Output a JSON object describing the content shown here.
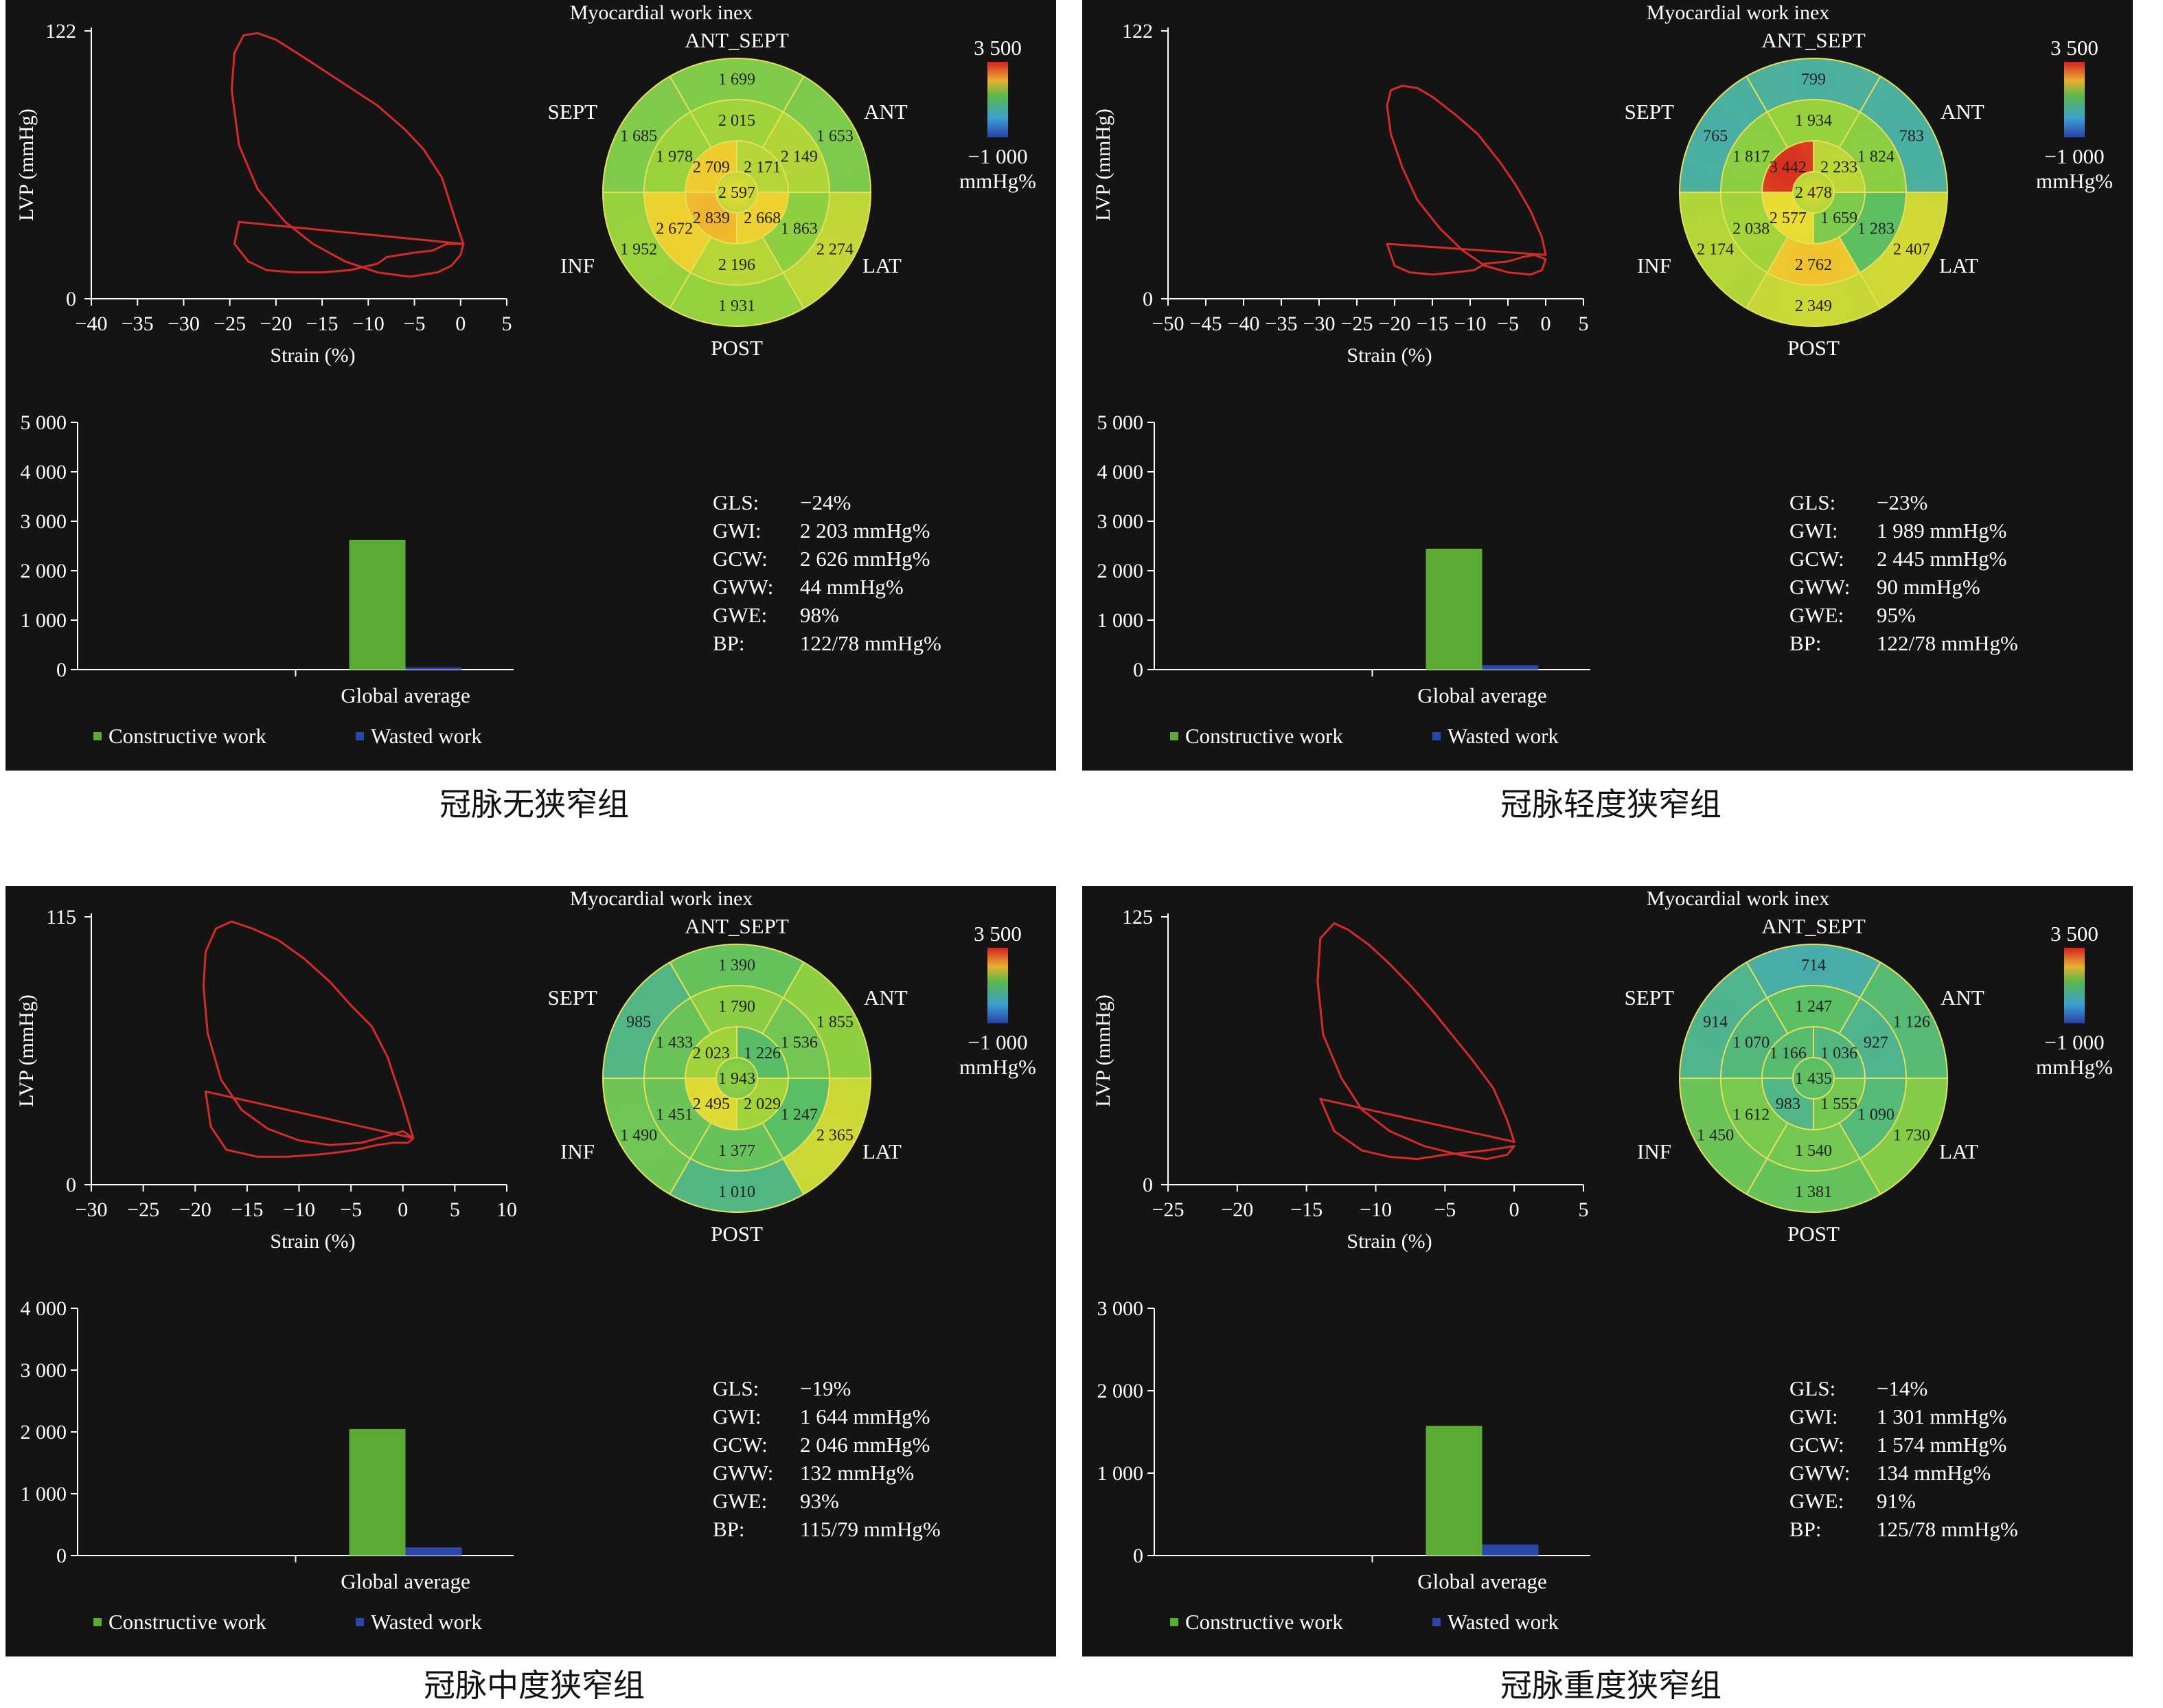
{
  "labels": {
    "bullseye_title": "Myocardial work inex",
    "segments": {
      "top": "ANT_SEPT",
      "tl": "SEPT",
      "tr": "ANT",
      "bl": "INF",
      "br": "LAT",
      "bottom": "POST"
    },
    "colorbar_max": "3 500",
    "colorbar_min": "−1 000",
    "colorbar_unit": "mmHg%",
    "legend_constructive": "Constructive work",
    "legend_wasted": "Wasted work",
    "bar_category": "Global average",
    "stat_keys": [
      "GLS:",
      "GWI:",
      "GCW:",
      "GWW:",
      "GWE:",
      "BP:"
    ]
  },
  "colors": {
    "panel_bg": "#141414",
    "loop": "#d42a2a",
    "constructive": "#5aaa34",
    "wasted": "#2a46a8",
    "axis": "#ffffff",
    "ring": "#e6e05a"
  },
  "panels": [
    {
      "caption": "冠脉无狭窄组",
      "stats": [
        "−24%",
        "2 203 mmHg%",
        "2 626 mmHg%",
        "44 mmHg%",
        "98%",
        "122/78 mmHg%"
      ],
      "bullseye": {
        "ring1": [
          "1 699",
          "1 653",
          "2 274",
          "1 931",
          "1 952",
          "1 685"
        ],
        "ring2": [
          "2 015",
          "2 149",
          "1 863",
          "2 196",
          "2 672",
          "1 978"
        ],
        "ring3": [
          "2 171",
          "2 668",
          "2 839",
          "2 709"
        ],
        "apex": "2 597"
      },
      "chart_data": [
        {
          "type": "line",
          "title": "",
          "xlabel": "Strain (%)",
          "ylabel": "LVP (mmHg)",
          "xlim": [
            -40,
            5
          ],
          "ylim": [
            0,
            122
          ],
          "xticks": [
            "−40",
            "−35",
            "−30",
            "−25",
            "−20",
            "−15",
            "−10",
            "−5",
            "0",
            "5"
          ],
          "yticks": [
            "0",
            "122"
          ],
          "x": [
            0.3,
            -0.5,
            -2,
            -4,
            -6,
            -9,
            -13,
            -17,
            -20,
            -22,
            -23.5,
            -24.5,
            -24.8,
            -24,
            -22,
            -19,
            -16,
            -12.5,
            -9,
            -5.5,
            -2.5,
            -1,
            0,
            0.3,
            -1.5,
            -3,
            -5,
            -8,
            -9,
            -12,
            -15,
            -18,
            -21,
            -23,
            -24.5,
            -24
          ],
          "y": [
            25,
            35,
            55,
            68,
            77,
            88,
            99,
            110,
            118,
            121,
            120,
            112,
            95,
            70,
            50,
            35,
            25,
            17,
            12,
            10,
            12,
            15,
            20,
            25,
            25,
            22,
            21,
            19,
            16,
            13,
            12,
            12,
            13,
            17,
            25,
            35
          ]
        },
        {
          "type": "bar",
          "categories": [
            "Global average"
          ],
          "series": [
            {
              "name": "Constructive work",
              "values": [
                2626
              ]
            },
            {
              "name": "Wasted work",
              "values": [
                44
              ]
            }
          ],
          "ylim": [
            0,
            5000
          ],
          "yticks": [
            "0",
            "1 000",
            "2 000",
            "3 000",
            "4 000",
            "5 000"
          ]
        }
      ]
    },
    {
      "caption": "冠脉轻度狭窄组",
      "stats": [
        "−23%",
        "1 989 mmHg%",
        "2 445 mmHg%",
        "90 mmHg%",
        "95%",
        "122/78 mmHg%"
      ],
      "bullseye": {
        "ring1": [
          "799",
          "783",
          "2 407",
          "2 349",
          "2 174",
          "765"
        ],
        "ring2": [
          "1 934",
          "1 824",
          "1 283",
          "2 762",
          "2 038",
          "1 817"
        ],
        "ring3": [
          "2 233",
          "1 659",
          "2 577",
          "3 442"
        ],
        "apex": "2 478"
      },
      "chart_data": [
        {
          "type": "line",
          "title": "",
          "xlabel": "Strain (%)",
          "ylabel": "LVP (mmHg)",
          "xlim": [
            -50,
            5
          ],
          "ylim": [
            0,
            122
          ],
          "xticks": [
            "−50",
            "−45",
            "−40",
            "−35",
            "−30",
            "−25",
            "−20",
            "−15",
            "−10",
            "−5",
            "0",
            "5"
          ],
          "yticks": [
            "0",
            "122"
          ],
          "x": [
            0,
            -0.5,
            -2,
            -4,
            -6,
            -9,
            -12,
            -15,
            -17,
            -19,
            -20.5,
            -21,
            -20.5,
            -19,
            -17,
            -14,
            -11,
            -8,
            -5,
            -2,
            -0.5,
            0,
            -1.5,
            -3,
            -5,
            -8,
            -9.5,
            -12,
            -15,
            -18,
            -20,
            -21
          ],
          "y": [
            20,
            28,
            40,
            52,
            62,
            75,
            84,
            92,
            96,
            97,
            95,
            88,
            75,
            60,
            45,
            32,
            22,
            15,
            12,
            11,
            13,
            18,
            20,
            19,
            17,
            16,
            13,
            12,
            11,
            12,
            15,
            25
          ]
        },
        {
          "type": "bar",
          "categories": [
            "Global average"
          ],
          "series": [
            {
              "name": "Constructive work",
              "values": [
                2445
              ]
            },
            {
              "name": "Wasted work",
              "values": [
                90
              ]
            }
          ],
          "ylim": [
            0,
            5000
          ],
          "yticks": [
            "0",
            "1 000",
            "2 000",
            "3 000",
            "4 000",
            "5 000"
          ]
        }
      ]
    },
    {
      "caption": "冠脉中度狭窄组",
      "stats": [
        "−19%",
        "1 644 mmHg%",
        "2 046 mmHg%",
        "132 mmHg%",
        "93%",
        "115/79 mmHg%"
      ],
      "bullseye": {
        "ring1": [
          "1 390",
          "1 855",
          "2 365",
          "1 010",
          "1 490",
          "985"
        ],
        "ring2": [
          "1 790",
          "1 536",
          "1 247",
          "1 377",
          "1 451",
          "1 433"
        ],
        "ring3": [
          "1 226",
          "2 029",
          "2 495",
          "2 023"
        ],
        "apex": "1 943"
      },
      "chart_data": [
        {
          "type": "line",
          "title": "",
          "xlabel": "Strain (%)",
          "ylabel": "LVP (mmHg)",
          "xlim": [
            -30,
            10
          ],
          "ylim": [
            0,
            115
          ],
          "xticks": [
            "−30",
            "−25",
            "−20",
            "−15",
            "−10",
            "−5",
            "0",
            "5",
            "10"
          ],
          "yticks": [
            "0",
            "115"
          ],
          "x": [
            1,
            0,
            -1.5,
            -3,
            -5,
            -7,
            -9.5,
            -12,
            -14.5,
            -16.5,
            -18,
            -19,
            -19.2,
            -18.8,
            -17.5,
            -15.5,
            -13,
            -10,
            -7,
            -4,
            -1.5,
            0,
            1,
            0.5,
            -1,
            -2.5,
            -4.5,
            -6,
            -8,
            -11,
            -14,
            -17,
            -18.5,
            -19
          ],
          "y": [
            20,
            35,
            55,
            68,
            77,
            87,
            97,
            105,
            110,
            113,
            110,
            100,
            85,
            65,
            45,
            32,
            24,
            19,
            17,
            18,
            21,
            23,
            20,
            18,
            18,
            17,
            15,
            14,
            13,
            12,
            12,
            15,
            25,
            40
          ]
        },
        {
          "type": "bar",
          "categories": [
            "Global average"
          ],
          "series": [
            {
              "name": "Constructive work",
              "values": [
                2046
              ]
            },
            {
              "name": "Wasted work",
              "values": [
                132
              ]
            }
          ],
          "ylim": [
            0,
            4000
          ],
          "yticks": [
            "0",
            "1 000",
            "2 000",
            "3 000",
            "4 000"
          ]
        }
      ]
    },
    {
      "caption": "冠脉重度狭窄组",
      "stats": [
        "−14%",
        "1 301 mmHg%",
        "1 574 mmHg%",
        "134 mmHg%",
        "91%",
        "125/78 mmHg%"
      ],
      "bullseye": {
        "ring1": [
          "714",
          "1 126",
          "1 730",
          "1 381",
          "1 450",
          "914"
        ],
        "ring2": [
          "1 247",
          "927",
          "1 090",
          "1 540",
          "1 612",
          "1 070"
        ],
        "ring3": [
          "1 036",
          "1 555",
          "983",
          "1 166"
        ],
        "apex": "1 435"
      },
      "chart_data": [
        {
          "type": "line",
          "title": "",
          "xlabel": "Strain (%)",
          "ylabel": "LVP (mmHg)",
          "xlim": [
            -25,
            5
          ],
          "ylim": [
            0,
            125
          ],
          "xticks": [
            "−25",
            "−20",
            "−15",
            "−10",
            "−5",
            "0",
            "5"
          ],
          "yticks": [
            "0",
            "125"
          ],
          "x": [
            0,
            -0.5,
            -1.5,
            -3,
            -4.5,
            -6,
            -7.5,
            -9,
            -10.5,
            -12,
            -13,
            -14,
            -14.2,
            -13.8,
            -12.5,
            -11,
            -9,
            -6.5,
            -4,
            -2,
            -0.5,
            0,
            -2,
            -3.5,
            -5,
            -7,
            -9,
            -11,
            -13,
            -14
          ],
          "y": [
            20,
            30,
            45,
            58,
            70,
            82,
            93,
            103,
            112,
            119,
            122,
            115,
            95,
            70,
            50,
            35,
            25,
            18,
            14,
            12,
            14,
            18,
            16,
            15,
            14,
            12,
            13,
            16,
            25,
            40
          ]
        },
        {
          "type": "bar",
          "categories": [
            "Global average"
          ],
          "series": [
            {
              "name": "Constructive work",
              "values": [
                1574
              ]
            },
            {
              "name": "Wasted work",
              "values": [
                134
              ]
            }
          ],
          "ylim": [
            0,
            3000
          ],
          "yticks": [
            "0",
            "1 000",
            "2 000",
            "3 000"
          ]
        }
      ]
    }
  ]
}
